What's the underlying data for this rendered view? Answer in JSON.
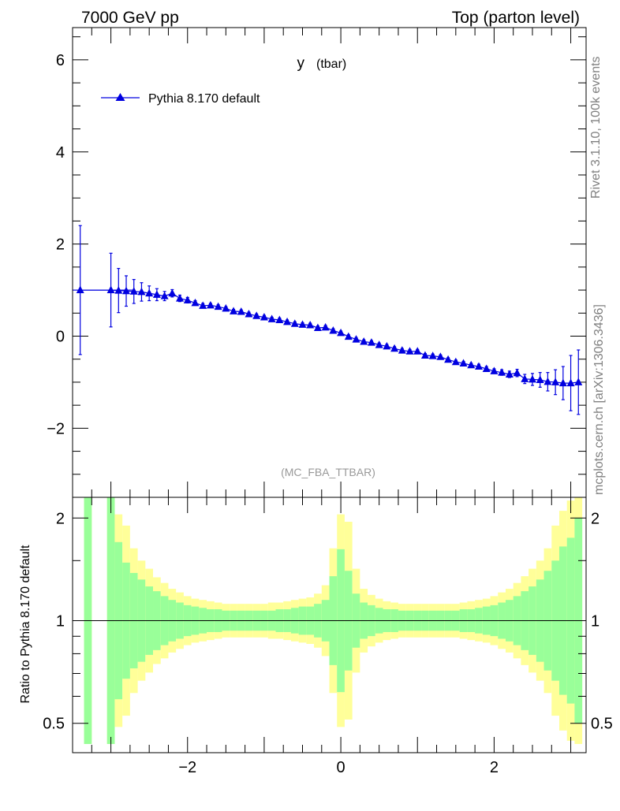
{
  "header": {
    "left": "7000 GeV pp",
    "right": "Top (parton level)"
  },
  "side": {
    "rivet": "Rivet 3.1.10,  100k events",
    "mcplots": "mcplots.cern.ch [arXiv:1306.3436]"
  },
  "chart_data": [
    {
      "type": "scatter",
      "title": "y",
      "title_suffix": "(tbar)",
      "analysis": "(MC_FBA_TTBAR)",
      "legend": {
        "label": "Pythia 8.170 default",
        "position": "top-left"
      },
      "color": "#0000e0",
      "xlim": [
        -3.5,
        3.2
      ],
      "ylim": [
        -3.5,
        6.7
      ],
      "x_ticks": [
        -2,
        0,
        2
      ],
      "x_tick_labels": [
        "−2",
        "0",
        "2"
      ],
      "y_ticks": [
        -2,
        0,
        2,
        4,
        6
      ],
      "y_tick_labels": [
        "−2",
        "0",
        "2",
        "4",
        "6"
      ],
      "series": [
        {
          "name": "Pythia 8.170 default",
          "points": [
            {
              "x": -3.4,
              "y": 1.0,
              "xerr": 0.1,
              "yerr": 1.4
            },
            {
              "x": -3.0,
              "y": 1.0,
              "xerr": 0.3,
              "yerr": 0.8
            },
            {
              "x": -2.9,
              "y": 0.99,
              "yerr": 0.48
            },
            {
              "x": -2.8,
              "y": 0.98,
              "yerr": 0.33
            },
            {
              "x": -2.7,
              "y": 0.97,
              "yerr": 0.26
            },
            {
              "x": -2.6,
              "y": 0.96,
              "yerr": 0.2
            },
            {
              "x": -2.5,
              "y": 0.93,
              "yerr": 0.16
            },
            {
              "x": -2.4,
              "y": 0.9,
              "yerr": 0.13
            },
            {
              "x": -2.3,
              "y": 0.87,
              "yerr": 0.1
            },
            {
              "x": -2.2,
              "y": 0.93,
              "yerr": 0.08
            },
            {
              "x": -2.1,
              "y": 0.82,
              "yerr": 0.07
            },
            {
              "x": -2.0,
              "y": 0.78,
              "yerr": 0.06
            },
            {
              "x": -1.9,
              "y": 0.72,
              "yerr": 0.05
            },
            {
              "x": -1.8,
              "y": 0.66,
              "yerr": 0.05
            },
            {
              "x": -1.7,
              "y": 0.67,
              "yerr": 0.04
            },
            {
              "x": -1.6,
              "y": 0.64,
              "yerr": 0.04
            },
            {
              "x": -1.5,
              "y": 0.6,
              "yerr": 0.04
            },
            {
              "x": -1.4,
              "y": 0.54,
              "yerr": 0.04
            },
            {
              "x": -1.3,
              "y": 0.53,
              "yerr": 0.04
            },
            {
              "x": -1.2,
              "y": 0.48,
              "yerr": 0.04
            },
            {
              "x": -1.1,
              "y": 0.44,
              "yerr": 0.04
            },
            {
              "x": -1.0,
              "y": 0.41,
              "yerr": 0.04
            },
            {
              "x": -0.9,
              "y": 0.37,
              "yerr": 0.04
            },
            {
              "x": -0.8,
              "y": 0.35,
              "yerr": 0.04
            },
            {
              "x": -0.7,
              "y": 0.31,
              "yerr": 0.04
            },
            {
              "x": -0.6,
              "y": 0.27,
              "yerr": 0.04
            },
            {
              "x": -0.5,
              "y": 0.25,
              "yerr": 0.04
            },
            {
              "x": -0.4,
              "y": 0.24,
              "yerr": 0.04
            },
            {
              "x": -0.3,
              "y": 0.18,
              "yerr": 0.04
            },
            {
              "x": -0.2,
              "y": 0.19,
              "yerr": 0.04
            },
            {
              "x": -0.1,
              "y": 0.12,
              "yerr": 0.04
            },
            {
              "x": 0.0,
              "y": 0.07,
              "yerr": 0.04
            },
            {
              "x": 0.1,
              "y": -0.01,
              "yerr": 0.04
            },
            {
              "x": 0.2,
              "y": -0.07,
              "yerr": 0.04
            },
            {
              "x": 0.3,
              "y": -0.12,
              "yerr": 0.04
            },
            {
              "x": 0.4,
              "y": -0.14,
              "yerr": 0.04
            },
            {
              "x": 0.5,
              "y": -0.19,
              "yerr": 0.04
            },
            {
              "x": 0.6,
              "y": -0.22,
              "yerr": 0.04
            },
            {
              "x": 0.7,
              "y": -0.27,
              "yerr": 0.04
            },
            {
              "x": 0.8,
              "y": -0.31,
              "yerr": 0.04
            },
            {
              "x": 0.9,
              "y": -0.33,
              "yerr": 0.04
            },
            {
              "x": 1.0,
              "y": -0.33,
              "yerr": 0.04
            },
            {
              "x": 1.1,
              "y": -0.42,
              "yerr": 0.04
            },
            {
              "x": 1.2,
              "y": -0.43,
              "yerr": 0.04
            },
            {
              "x": 1.3,
              "y": -0.45,
              "yerr": 0.04
            },
            {
              "x": 1.4,
              "y": -0.51,
              "yerr": 0.04
            },
            {
              "x": 1.5,
              "y": -0.56,
              "yerr": 0.04
            },
            {
              "x": 1.6,
              "y": -0.59,
              "yerr": 0.04
            },
            {
              "x": 1.7,
              "y": -0.63,
              "yerr": 0.04
            },
            {
              "x": 1.8,
              "y": -0.66,
              "yerr": 0.05
            },
            {
              "x": 1.9,
              "y": -0.71,
              "yerr": 0.05
            },
            {
              "x": 2.0,
              "y": -0.76,
              "yerr": 0.05
            },
            {
              "x": 2.1,
              "y": -0.79,
              "yerr": 0.06
            },
            {
              "x": 2.2,
              "y": -0.83,
              "yerr": 0.07
            },
            {
              "x": 2.3,
              "y": -0.8,
              "yerr": 0.08
            },
            {
              "x": 2.4,
              "y": -0.93,
              "yerr": 0.1
            },
            {
              "x": 2.5,
              "y": -0.94,
              "yerr": 0.13
            },
            {
              "x": 2.6,
              "y": -0.95,
              "yerr": 0.16
            },
            {
              "x": 2.7,
              "y": -0.99,
              "yerr": 0.2
            },
            {
              "x": 2.8,
              "y": -1.0,
              "yerr": 0.27
            },
            {
              "x": 2.9,
              "y": -1.02,
              "yerr": 0.36
            },
            {
              "x": 3.0,
              "y": -1.02,
              "yerr": 0.6
            },
            {
              "x": 3.1,
              "y": -1.0,
              "yerr": 0.7
            }
          ]
        }
      ]
    },
    {
      "type": "area",
      "ylabel": "Ratio to Pythia 8.170 default",
      "ylim": [
        0.41,
        2.3
      ],
      "y_scale": "log",
      "xlim": [
        -3.5,
        3.2
      ],
      "reference_line": 1,
      "colors": {
        "inner": "#99ff99",
        "outer": "#ffff99"
      },
      "x_ticks": [
        -2,
        0,
        2
      ],
      "x_tick_labels": [
        "−2",
        "0",
        "2"
      ],
      "y_ticks": [
        0.5,
        1,
        2
      ],
      "y_tick_labels": [
        "0.5",
        "1",
        "2"
      ],
      "bands": [
        {
          "x0": -3.35,
          "x1": -3.25,
          "inner": 2.3,
          "outer": 2.3
        },
        {
          "x0": -3.05,
          "x1": -2.95,
          "inner": 2.3,
          "outer": 2.3
        },
        {
          "x0": -2.95,
          "x1": -2.85,
          "inner": 1.7,
          "outer": 2.05
        },
        {
          "x0": -2.85,
          "x1": -2.75,
          "inner": 1.48,
          "outer": 1.9
        },
        {
          "x0": -2.75,
          "x1": -2.65,
          "inner": 1.38,
          "outer": 1.63
        },
        {
          "x0": -2.65,
          "x1": -2.55,
          "inner": 1.32,
          "outer": 1.5
        },
        {
          "x0": -2.55,
          "x1": -2.45,
          "inner": 1.26,
          "outer": 1.42
        },
        {
          "x0": -2.45,
          "x1": -2.35,
          "inner": 1.22,
          "outer": 1.34
        },
        {
          "x0": -2.35,
          "x1": -2.25,
          "inner": 1.18,
          "outer": 1.29
        },
        {
          "x0": -2.25,
          "x1": -2.15,
          "inner": 1.15,
          "outer": 1.24
        },
        {
          "x0": -2.15,
          "x1": -2.05,
          "inner": 1.13,
          "outer": 1.21
        },
        {
          "x0": -2.05,
          "x1": -1.95,
          "inner": 1.11,
          "outer": 1.18
        },
        {
          "x0": -1.95,
          "x1": -1.85,
          "inner": 1.1,
          "outer": 1.16
        },
        {
          "x0": -1.85,
          "x1": -1.75,
          "inner": 1.09,
          "outer": 1.15
        },
        {
          "x0": -1.75,
          "x1": -1.65,
          "inner": 1.08,
          "outer": 1.14
        },
        {
          "x0": -1.65,
          "x1": -1.55,
          "inner": 1.08,
          "outer": 1.13
        },
        {
          "x0": -1.55,
          "x1": -1.45,
          "inner": 1.07,
          "outer": 1.12
        },
        {
          "x0": -1.45,
          "x1": -1.35,
          "inner": 1.07,
          "outer": 1.12
        },
        {
          "x0": -1.35,
          "x1": -1.25,
          "inner": 1.07,
          "outer": 1.12
        },
        {
          "x0": -1.25,
          "x1": -1.15,
          "inner": 1.07,
          "outer": 1.12
        },
        {
          "x0": -1.15,
          "x1": -1.05,
          "inner": 1.07,
          "outer": 1.12
        },
        {
          "x0": -1.05,
          "x1": -0.95,
          "inner": 1.07,
          "outer": 1.12
        },
        {
          "x0": -0.95,
          "x1": -0.85,
          "inner": 1.07,
          "outer": 1.13
        },
        {
          "x0": -0.85,
          "x1": -0.75,
          "inner": 1.08,
          "outer": 1.13
        },
        {
          "x0": -0.75,
          "x1": -0.65,
          "inner": 1.08,
          "outer": 1.14
        },
        {
          "x0": -0.65,
          "x1": -0.55,
          "inner": 1.09,
          "outer": 1.15
        },
        {
          "x0": -0.55,
          "x1": -0.45,
          "inner": 1.1,
          "outer": 1.16
        },
        {
          "x0": -0.45,
          "x1": -0.35,
          "inner": 1.1,
          "outer": 1.17
        },
        {
          "x0": -0.35,
          "x1": -0.25,
          "inner": 1.12,
          "outer": 1.2
        },
        {
          "x0": -0.25,
          "x1": -0.15,
          "inner": 1.15,
          "outer": 1.27
        },
        {
          "x0": -0.15,
          "x1": -0.05,
          "inner": 1.35,
          "outer": 1.63
        },
        {
          "x0": -0.05,
          "x1": 0.05,
          "inner": 1.62,
          "outer": 2.05
        },
        {
          "x0": 0.05,
          "x1": 0.15,
          "inner": 1.4,
          "outer": 1.95
        },
        {
          "x0": 0.15,
          "x1": 0.25,
          "inner": 1.2,
          "outer": 1.42
        },
        {
          "x0": 0.25,
          "x1": 0.35,
          "inner": 1.13,
          "outer": 1.24
        },
        {
          "x0": 0.35,
          "x1": 0.45,
          "inner": 1.11,
          "outer": 1.19
        },
        {
          "x0": 0.45,
          "x1": 0.55,
          "inner": 1.09,
          "outer": 1.16
        },
        {
          "x0": 0.55,
          "x1": 0.65,
          "inner": 1.08,
          "outer": 1.14
        },
        {
          "x0": 0.65,
          "x1": 0.75,
          "inner": 1.08,
          "outer": 1.13
        },
        {
          "x0": 0.75,
          "x1": 0.85,
          "inner": 1.07,
          "outer": 1.12
        },
        {
          "x0": 0.85,
          "x1": 0.95,
          "inner": 1.07,
          "outer": 1.12
        },
        {
          "x0": 0.95,
          "x1": 1.05,
          "inner": 1.07,
          "outer": 1.12
        },
        {
          "x0": 1.05,
          "x1": 1.15,
          "inner": 1.07,
          "outer": 1.12
        },
        {
          "x0": 1.15,
          "x1": 1.25,
          "inner": 1.07,
          "outer": 1.12
        },
        {
          "x0": 1.25,
          "x1": 1.35,
          "inner": 1.07,
          "outer": 1.12
        },
        {
          "x0": 1.35,
          "x1": 1.45,
          "inner": 1.07,
          "outer": 1.12
        },
        {
          "x0": 1.45,
          "x1": 1.55,
          "inner": 1.07,
          "outer": 1.12
        },
        {
          "x0": 1.55,
          "x1": 1.65,
          "inner": 1.08,
          "outer": 1.13
        },
        {
          "x0": 1.65,
          "x1": 1.75,
          "inner": 1.08,
          "outer": 1.14
        },
        {
          "x0": 1.75,
          "x1": 1.85,
          "inner": 1.09,
          "outer": 1.15
        },
        {
          "x0": 1.85,
          "x1": 1.95,
          "inner": 1.1,
          "outer": 1.16
        },
        {
          "x0": 1.95,
          "x1": 2.05,
          "inner": 1.11,
          "outer": 1.18
        },
        {
          "x0": 2.05,
          "x1": 2.15,
          "inner": 1.13,
          "outer": 1.21
        },
        {
          "x0": 2.15,
          "x1": 2.25,
          "inner": 1.15,
          "outer": 1.24
        },
        {
          "x0": 2.25,
          "x1": 2.35,
          "inner": 1.18,
          "outer": 1.29
        },
        {
          "x0": 2.35,
          "x1": 2.45,
          "inner": 1.22,
          "outer": 1.35
        },
        {
          "x0": 2.45,
          "x1": 2.55,
          "inner": 1.26,
          "outer": 1.42
        },
        {
          "x0": 2.55,
          "x1": 2.65,
          "inner": 1.32,
          "outer": 1.5
        },
        {
          "x0": 2.65,
          "x1": 2.75,
          "inner": 1.4,
          "outer": 1.63
        },
        {
          "x0": 2.75,
          "x1": 2.85,
          "inner": 1.5,
          "outer": 1.9
        },
        {
          "x0": 2.85,
          "x1": 2.95,
          "inner": 1.65,
          "outer": 2.1
        },
        {
          "x0": 2.95,
          "x1": 3.05,
          "inner": 1.75,
          "outer": 2.25
        },
        {
          "x0": 3.05,
          "x1": 3.15,
          "inner": 2.0,
          "outer": 2.3
        }
      ]
    }
  ]
}
